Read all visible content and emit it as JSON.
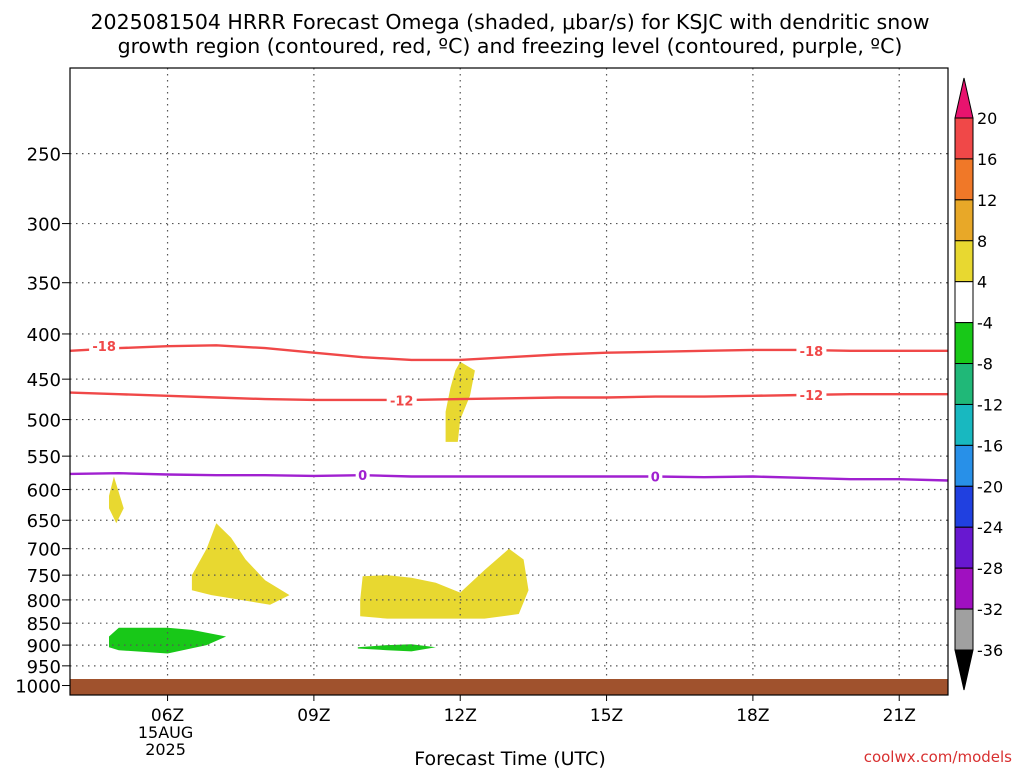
{
  "chart_data": {
    "type": "contour",
    "title_line1": "2025081504 HRRR Forecast Omega (shaded, μbar/s) for KSJC with dendritic snow",
    "title_line2": "growth region (contoured, red, ºC) and freezing level (contoured, purple, ºC)",
    "xlabel": "Forecast Time (UTC)",
    "credit": "coolwx.com/models",
    "x_ticks": [
      {
        "hour": 6,
        "label": "06Z",
        "sublabel": [
          "15AUG",
          "2025"
        ]
      },
      {
        "hour": 9,
        "label": "09Z"
      },
      {
        "hour": 12,
        "label": "12Z"
      },
      {
        "hour": 15,
        "label": "15Z"
      },
      {
        "hour": 18,
        "label": "18Z"
      },
      {
        "hour": 21,
        "label": "21Z"
      }
    ],
    "xlim_hours": [
      4,
      22
    ],
    "y_ticks": [
      250,
      300,
      350,
      400,
      450,
      500,
      550,
      600,
      650,
      700,
      750,
      800,
      850,
      900,
      950,
      1000
    ],
    "ylim_hPa": [
      200,
      1025
    ],
    "y_scale": "log",
    "surface_hPa": 1000,
    "colorbar": {
      "labels": [
        "20",
        "16",
        "12",
        "8",
        "4",
        "-4",
        "-8",
        "-12",
        "-16",
        "-20",
        "-24",
        "-28",
        "-32",
        "-36"
      ],
      "colors": [
        "#e8136e",
        "#f04848",
        "#f07828",
        "#e8a828",
        "#e8d830",
        "#ffffff",
        "#18c818",
        "#20b878",
        "#18b8c0",
        "#2890e8",
        "#2040e0",
        "#6818d0",
        "#a010c0",
        "#a0a0a0",
        "#000000"
      ]
    },
    "contours": [
      {
        "label": "-18",
        "color": "#f04848",
        "points": [
          [
            4,
            418
          ],
          [
            5,
            415
          ],
          [
            6,
            413
          ],
          [
            7,
            412
          ],
          [
            8,
            415
          ],
          [
            9,
            420
          ],
          [
            10,
            425
          ],
          [
            11,
            428
          ],
          [
            12,
            428
          ],
          [
            13,
            425
          ],
          [
            14,
            422
          ],
          [
            15,
            420
          ],
          [
            16,
            419
          ],
          [
            17,
            418
          ],
          [
            18,
            417
          ],
          [
            19,
            417
          ],
          [
            20,
            418
          ],
          [
            21,
            418
          ],
          [
            22,
            418
          ]
        ],
        "label_at": [
          [
            4.7,
            413
          ],
          [
            19.2,
            418
          ]
        ]
      },
      {
        "label": "-12",
        "color": "#f04848",
        "points": [
          [
            4,
            466
          ],
          [
            5,
            468
          ],
          [
            6,
            470
          ],
          [
            7,
            472
          ],
          [
            8,
            474
          ],
          [
            9,
            475
          ],
          [
            10,
            475
          ],
          [
            11,
            475
          ],
          [
            12,
            474
          ],
          [
            13,
            473
          ],
          [
            14,
            472
          ],
          [
            15,
            472
          ],
          [
            16,
            471
          ],
          [
            17,
            471
          ],
          [
            18,
            470
          ],
          [
            19,
            469
          ],
          [
            20,
            468
          ],
          [
            21,
            468
          ],
          [
            22,
            468
          ]
        ],
        "label_at": [
          [
            10.8,
            476
          ],
          [
            19.2,
            469
          ]
        ]
      },
      {
        "label": "0",
        "color": "#a020d0",
        "points": [
          [
            4,
            576
          ],
          [
            5,
            575
          ],
          [
            6,
            577
          ],
          [
            7,
            578
          ],
          [
            8,
            578
          ],
          [
            9,
            579
          ],
          [
            10,
            578
          ],
          [
            11,
            580
          ],
          [
            12,
            580
          ],
          [
            13,
            580
          ],
          [
            14,
            580
          ],
          [
            15,
            580
          ],
          [
            16,
            580
          ],
          [
            17,
            581
          ],
          [
            18,
            580
          ],
          [
            19,
            582
          ],
          [
            20,
            584
          ],
          [
            21,
            584
          ],
          [
            22,
            586
          ]
        ],
        "label_at": [
          [
            10,
            578
          ],
          [
            16,
            580
          ]
        ]
      }
    ],
    "shaded": [
      {
        "value_range": [
          4,
          8
        ],
        "color": "#e8d830",
        "points": [
          [
            12.0,
            430
          ],
          [
            12.3,
            440
          ],
          [
            12.2,
            470
          ],
          [
            12.0,
            500
          ],
          [
            11.95,
            530
          ],
          [
            11.7,
            530
          ],
          [
            11.7,
            490
          ],
          [
            11.8,
            460
          ],
          [
            11.9,
            440
          ]
        ]
      },
      {
        "value_range": [
          4,
          8
        ],
        "color": "#e8d830",
        "points": [
          [
            4.9,
            580
          ],
          [
            5.1,
            630
          ],
          [
            4.95,
            655
          ],
          [
            4.8,
            630
          ],
          [
            4.8,
            610
          ]
        ]
      },
      {
        "value_range": [
          4,
          8
        ],
        "color": "#e8d830",
        "points": [
          [
            7.0,
            655
          ],
          [
            7.3,
            680
          ],
          [
            7.6,
            720
          ],
          [
            8.0,
            760
          ],
          [
            8.5,
            790
          ],
          [
            8.1,
            810
          ],
          [
            7.5,
            800
          ],
          [
            6.9,
            790
          ],
          [
            6.5,
            780
          ],
          [
            6.5,
            750
          ],
          [
            6.8,
            700
          ]
        ]
      },
      {
        "value_range": [
          4,
          8
        ],
        "color": "#e8d830",
        "points": [
          [
            10.0,
            752
          ],
          [
            10.5,
            750
          ],
          [
            11.0,
            755
          ],
          [
            11.5,
            765
          ],
          [
            12.0,
            785
          ],
          [
            12.5,
            740
          ],
          [
            13.0,
            700
          ],
          [
            13.3,
            720
          ],
          [
            13.4,
            780
          ],
          [
            13.2,
            830
          ],
          [
            12.5,
            840
          ],
          [
            11.5,
            840
          ],
          [
            10.5,
            840
          ],
          [
            9.95,
            835
          ],
          [
            9.95,
            800
          ]
        ]
      },
      {
        "value_range": [
          -8,
          -4
        ],
        "color": "#18c818",
        "points": [
          [
            5.0,
            860
          ],
          [
            6.0,
            860
          ],
          [
            6.5,
            865
          ],
          [
            7.2,
            880
          ],
          [
            6.8,
            900
          ],
          [
            6.0,
            920
          ],
          [
            5.0,
            912
          ],
          [
            4.8,
            905
          ],
          [
            4.8,
            880
          ]
        ]
      },
      {
        "value_range": [
          -8,
          -4
        ],
        "color": "#18c818",
        "points": [
          [
            9.9,
            905
          ],
          [
            10.5,
            900
          ],
          [
            11.0,
            898
          ],
          [
            11.5,
            905
          ],
          [
            11.0,
            915
          ],
          [
            10.5,
            912
          ],
          [
            9.9,
            908
          ]
        ]
      }
    ]
  }
}
